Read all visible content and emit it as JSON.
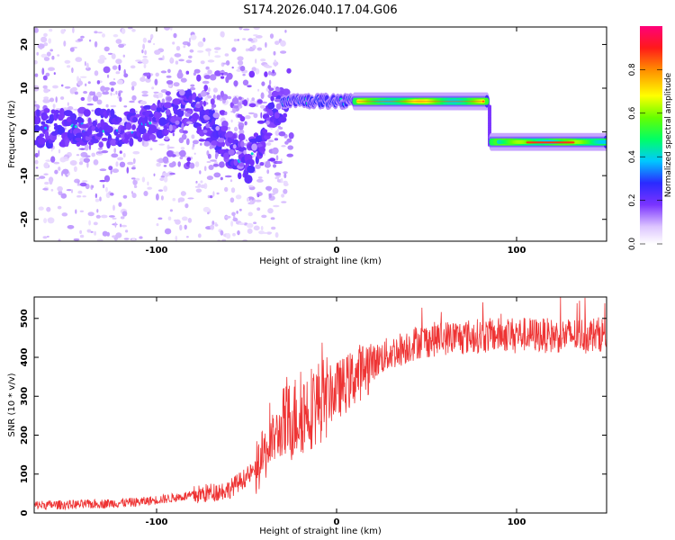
{
  "title": "S174.2026.040.17.04.G06",
  "colorbar_label": "Normalized spectral amplitude",
  "colorbar_ticks": [
    "0.0",
    "0.2",
    "0.4",
    "0.6",
    "0.8"
  ],
  "chart_data": [
    {
      "type": "heatmap",
      "name": "spectrogram",
      "xlabel": "Height of straight line (km)",
      "ylabel": "Frequency (Hz)",
      "xlim": [
        -168,
        150
      ],
      "ylim": [
        -25,
        24
      ],
      "xticks": [
        -100,
        0,
        100
      ],
      "yticks": [
        -20,
        -10,
        0,
        10,
        20
      ],
      "xtick_labels": [
        "-100",
        "0",
        "100"
      ],
      "ytick_labels": [
        "-20",
        "-10",
        "0",
        "10",
        "20"
      ],
      "colorbar_range": [
        0,
        1
      ],
      "dominant_trace": [
        {
          "x": -165,
          "y": 1
        },
        {
          "x": -140,
          "y": 1
        },
        {
          "x": -115,
          "y": 1
        },
        {
          "x": -95,
          "y": 3
        },
        {
          "x": -85,
          "y": 6
        },
        {
          "x": -75,
          "y": 4
        },
        {
          "x": -65,
          "y": -1
        },
        {
          "x": -55,
          "y": -6
        },
        {
          "x": -50,
          "y": -8
        },
        {
          "x": -45,
          "y": -4
        },
        {
          "x": -38,
          "y": 3
        },
        {
          "x": -32,
          "y": 6.5
        },
        {
          "x": -20,
          "y": 7
        },
        {
          "x": 0,
          "y": 7
        },
        {
          "x": 20,
          "y": 7
        },
        {
          "x": 50,
          "y": 7
        },
        {
          "x": 80,
          "y": 7
        },
        {
          "x": 85,
          "y": 6
        },
        {
          "x": 88,
          "y": -3
        },
        {
          "x": 100,
          "y": -2
        },
        {
          "x": 120,
          "y": -2
        },
        {
          "x": 150,
          "y": -2
        }
      ]
    },
    {
      "type": "line",
      "name": "snr",
      "xlabel": "Height of straight line (km)",
      "ylabel": "SNR (10 * v/v)",
      "xlim": [
        -168,
        150
      ],
      "ylim": [
        0,
        555
      ],
      "xticks": [
        -100,
        0,
        100
      ],
      "yticks": [
        0,
        100,
        200,
        300,
        400,
        500
      ],
      "xtick_labels": [
        "-100",
        "0",
        "100"
      ],
      "ytick_labels": [
        "0",
        "100",
        "200",
        "300",
        "400",
        "500"
      ],
      "color": "#ee3333",
      "trend": {
        "x": [
          -168,
          -140,
          -110,
          -80,
          -60,
          -45,
          -35,
          -25,
          -15,
          -5,
          5,
          15,
          25,
          35,
          45,
          60,
          80,
          100,
          120,
          150
        ],
        "y": [
          20,
          22,
          28,
          45,
          60,
          110,
          190,
          240,
          270,
          300,
          330,
          370,
          400,
          420,
          440,
          450,
          455,
          460,
          455,
          460
        ]
      }
    }
  ]
}
